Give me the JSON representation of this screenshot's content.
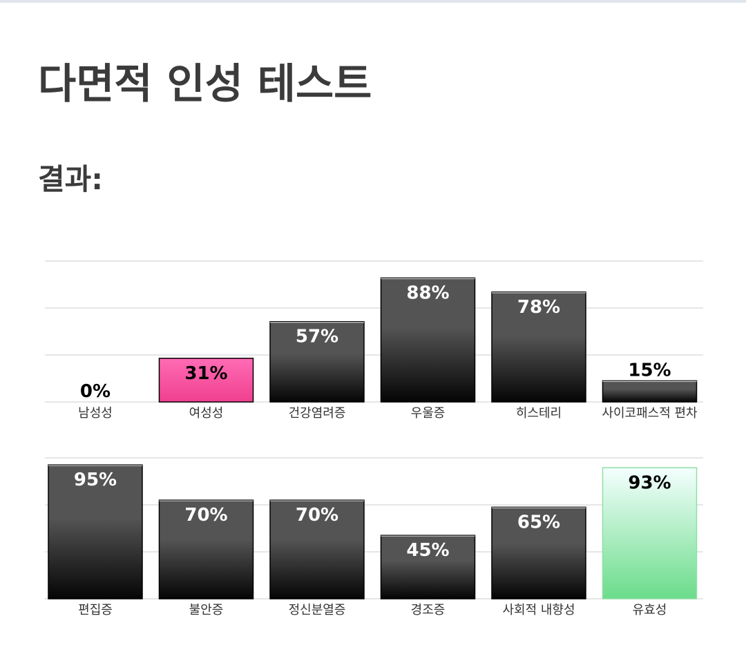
{
  "title": "다면적 인성 테스트",
  "subtitle": "결과:",
  "colors": {
    "dark_bar_top": "#545454",
    "dark_bar_bottom": "#050505",
    "pink_bar_top": "#ff6bb5",
    "pink_bar_bottom": "#f0408e",
    "green_bar_top": "#f4ffff",
    "green_bar_bottom": "#6bdc8a",
    "gridline": "#e6e6e6"
  },
  "chart_data": [
    {
      "type": "bar",
      "ylim": [
        0,
        100
      ],
      "grid": true,
      "categories": [
        "남성성",
        "여성성",
        "건강염려증",
        "우울증",
        "히스테리",
        "사이코패스적 편차"
      ],
      "series": [
        {
          "values": [
            0,
            31,
            57,
            88,
            78,
            15
          ],
          "labels": [
            "0%",
            "31%",
            "57%",
            "88%",
            "78%",
            "15%"
          ],
          "styles": [
            "dark",
            "pink",
            "dark",
            "dark",
            "dark",
            "dark"
          ]
        }
      ]
    },
    {
      "type": "bar",
      "ylim": [
        0,
        100
      ],
      "grid": true,
      "categories": [
        "편집증",
        "불안증",
        "정신분열증",
        "경조증",
        "사회적 내향성",
        "유효성"
      ],
      "series": [
        {
          "values": [
            95,
            70,
            70,
            45,
            65,
            93
          ],
          "labels": [
            "95%",
            "70%",
            "70%",
            "45%",
            "65%",
            "93%"
          ],
          "styles": [
            "dark",
            "dark",
            "dark",
            "dark",
            "dark",
            "green"
          ]
        }
      ]
    }
  ]
}
